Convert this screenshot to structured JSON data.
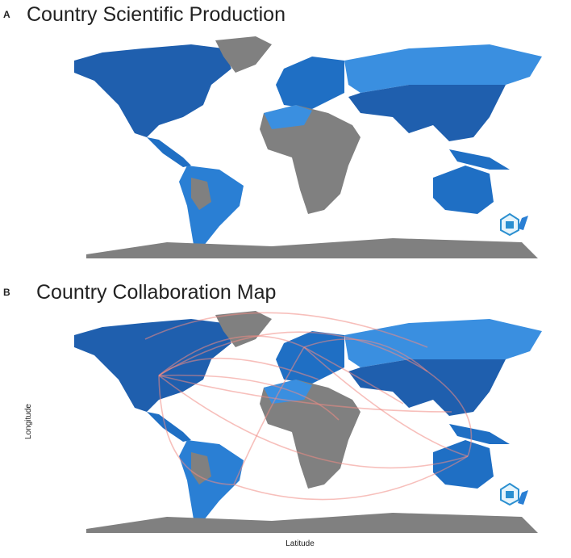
{
  "panels": [
    {
      "label": "A",
      "title": "Country Scientific Production"
    },
    {
      "label": "B",
      "title": "Country Collaboration Map",
      "y_axis_label": "Longitude",
      "x_axis_label": "Latitude"
    }
  ]
}
